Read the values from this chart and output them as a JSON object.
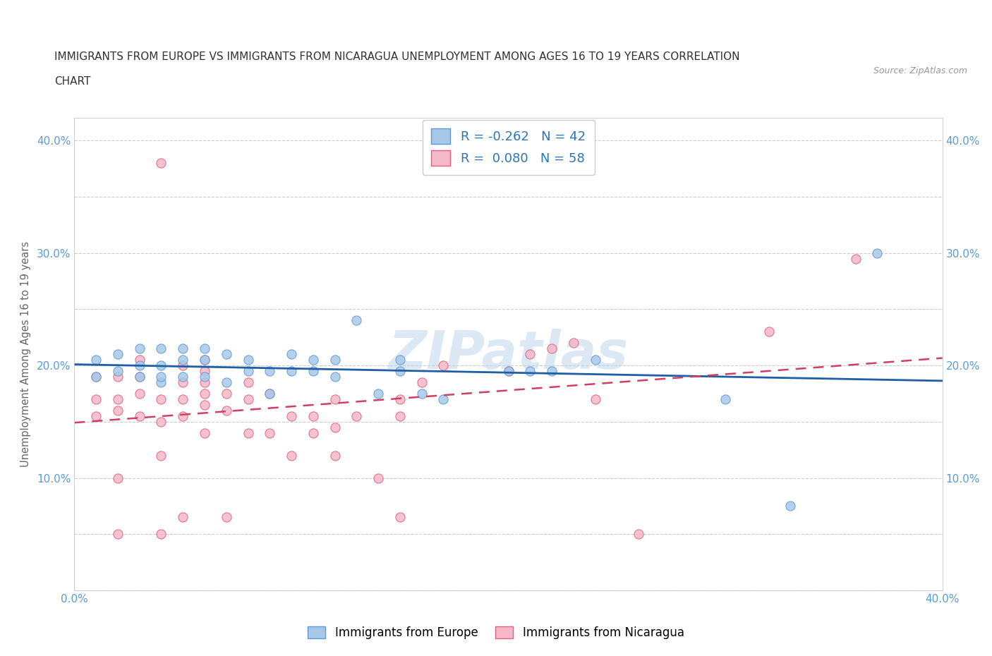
{
  "title_line1": "IMMIGRANTS FROM EUROPE VS IMMIGRANTS FROM NICARAGUA UNEMPLOYMENT AMONG AGES 16 TO 19 YEARS CORRELATION",
  "title_line2": "CHART",
  "source_text": "Source: ZipAtlas.com",
  "ylabel": "Unemployment Among Ages 16 to 19 years",
  "xlim": [
    0.0,
    0.4
  ],
  "ylim": [
    0.0,
    0.42
  ],
  "xticks": [
    0.0,
    0.05,
    0.1,
    0.15,
    0.2,
    0.25,
    0.3,
    0.35,
    0.4
  ],
  "yticks": [
    0.0,
    0.05,
    0.1,
    0.15,
    0.2,
    0.25,
    0.3,
    0.35,
    0.4
  ],
  "europe_color": "#a8c8e8",
  "europe_edge_color": "#5b9bd5",
  "nicaragua_color": "#f4b8c8",
  "nicaragua_edge_color": "#e06080",
  "europe_trendline_color": "#1f5fa6",
  "nicaragua_trendline_color": "#d04060",
  "legend_europe_label": "R = -0.262   N = 42",
  "legend_nicaragua_label": "R =  0.080   N = 58",
  "bottom_legend_europe": "Immigrants from Europe",
  "bottom_legend_nicaragua": "Immigrants from Nicaragua",
  "watermark": "ZIPatlas",
  "europe_x": [
    0.01,
    0.01,
    0.02,
    0.02,
    0.03,
    0.03,
    0.03,
    0.04,
    0.04,
    0.04,
    0.04,
    0.05,
    0.05,
    0.05,
    0.06,
    0.06,
    0.06,
    0.07,
    0.07,
    0.08,
    0.08,
    0.09,
    0.09,
    0.1,
    0.1,
    0.11,
    0.11,
    0.12,
    0.12,
    0.13,
    0.14,
    0.15,
    0.15,
    0.16,
    0.17,
    0.2,
    0.21,
    0.22,
    0.24,
    0.3,
    0.33,
    0.37
  ],
  "europe_y": [
    0.19,
    0.205,
    0.195,
    0.21,
    0.19,
    0.2,
    0.215,
    0.185,
    0.19,
    0.2,
    0.215,
    0.19,
    0.205,
    0.215,
    0.19,
    0.205,
    0.215,
    0.185,
    0.21,
    0.195,
    0.205,
    0.175,
    0.195,
    0.195,
    0.21,
    0.195,
    0.205,
    0.19,
    0.205,
    0.24,
    0.175,
    0.195,
    0.205,
    0.175,
    0.17,
    0.195,
    0.195,
    0.195,
    0.205,
    0.17,
    0.075,
    0.3
  ],
  "nicaragua_x": [
    0.01,
    0.01,
    0.01,
    0.02,
    0.02,
    0.02,
    0.02,
    0.02,
    0.03,
    0.03,
    0.03,
    0.03,
    0.04,
    0.04,
    0.04,
    0.04,
    0.04,
    0.05,
    0.05,
    0.05,
    0.05,
    0.05,
    0.06,
    0.06,
    0.06,
    0.06,
    0.06,
    0.06,
    0.07,
    0.07,
    0.07,
    0.08,
    0.08,
    0.08,
    0.09,
    0.09,
    0.1,
    0.1,
    0.11,
    0.11,
    0.12,
    0.12,
    0.12,
    0.13,
    0.14,
    0.15,
    0.15,
    0.15,
    0.16,
    0.17,
    0.2,
    0.21,
    0.22,
    0.23,
    0.24,
    0.26,
    0.32,
    0.36
  ],
  "nicaragua_y": [
    0.155,
    0.17,
    0.19,
    0.05,
    0.1,
    0.16,
    0.17,
    0.19,
    0.155,
    0.175,
    0.19,
    0.205,
    0.05,
    0.12,
    0.15,
    0.17,
    0.38,
    0.065,
    0.155,
    0.17,
    0.185,
    0.2,
    0.14,
    0.165,
    0.175,
    0.185,
    0.195,
    0.205,
    0.065,
    0.16,
    0.175,
    0.14,
    0.17,
    0.185,
    0.14,
    0.175,
    0.12,
    0.155,
    0.14,
    0.155,
    0.12,
    0.145,
    0.17,
    0.155,
    0.1,
    0.065,
    0.155,
    0.17,
    0.185,
    0.2,
    0.195,
    0.21,
    0.215,
    0.22,
    0.17,
    0.05,
    0.23,
    0.295
  ],
  "background_color": "#ffffff",
  "grid_color": "#dddddd",
  "label_color": "#5b9bd5"
}
